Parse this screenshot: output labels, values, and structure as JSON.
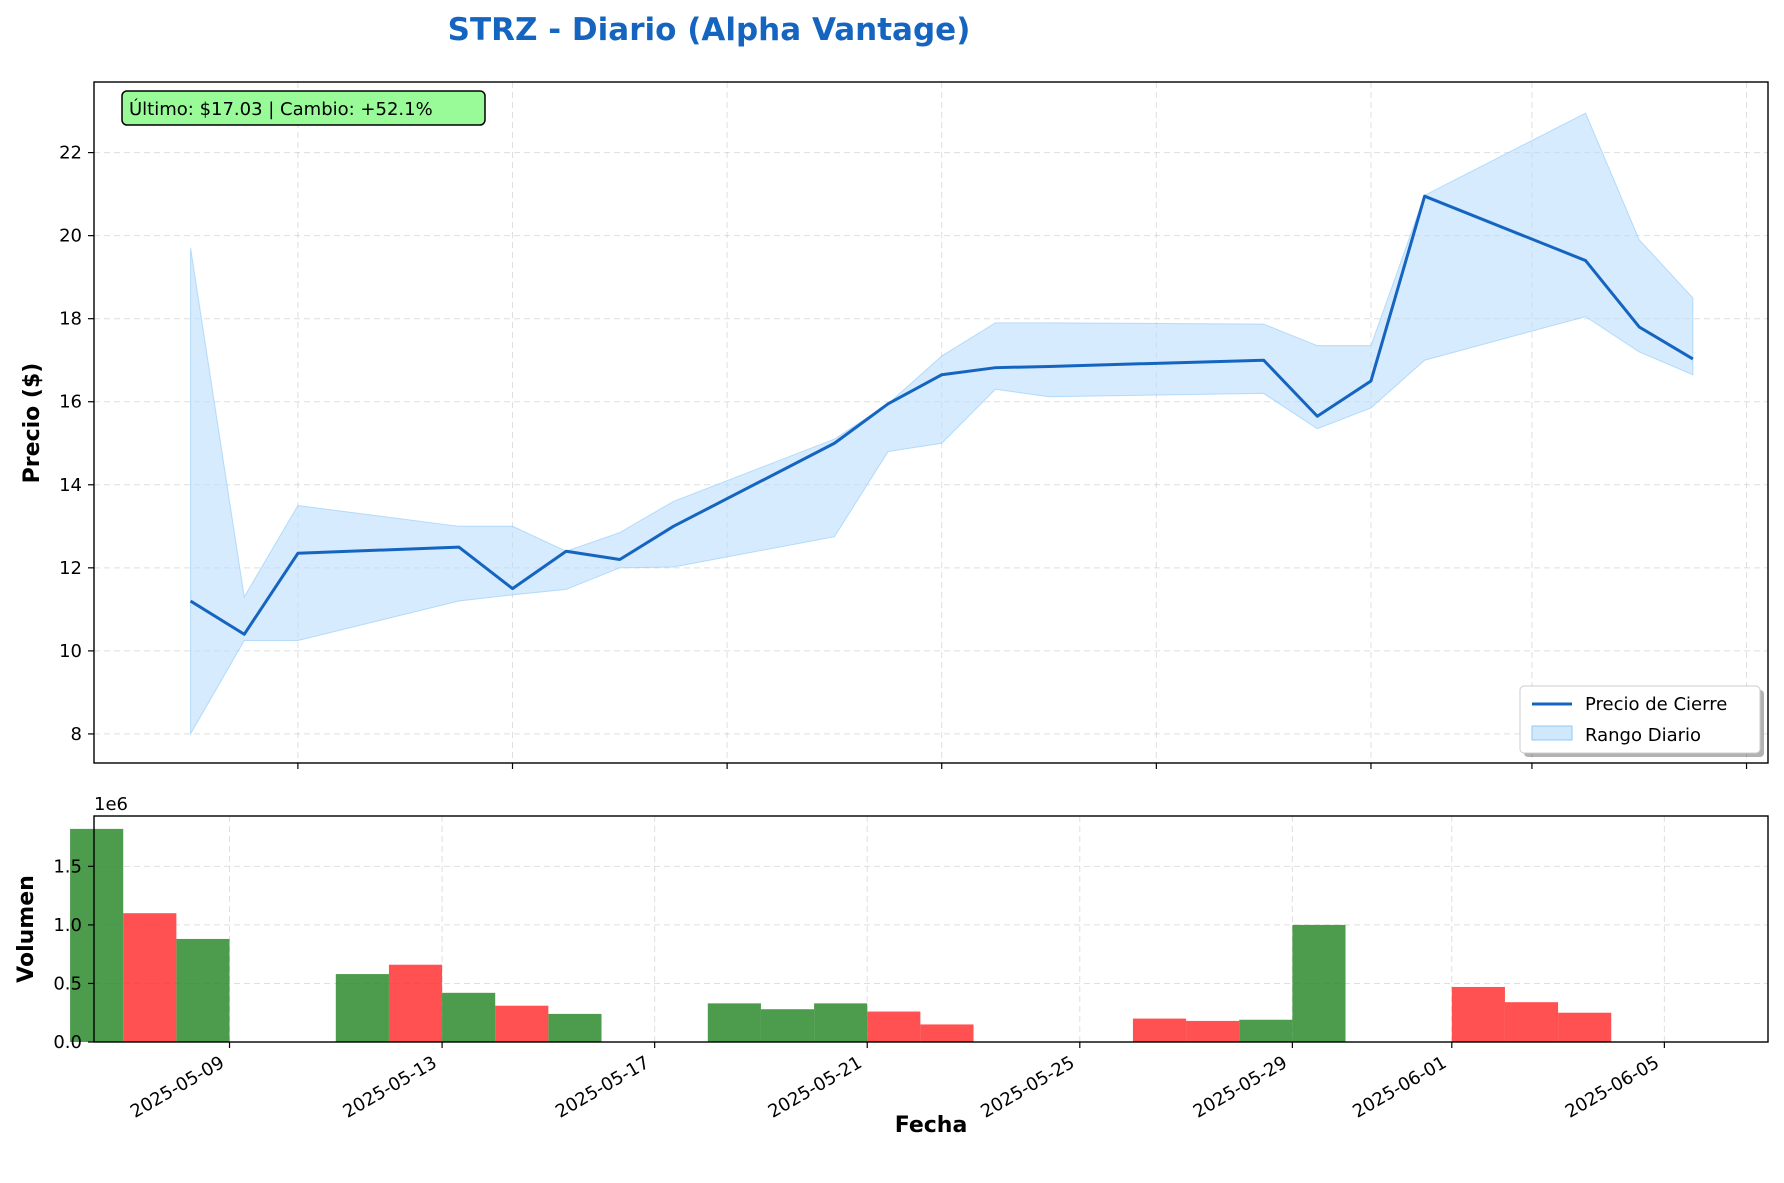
{
  "chart_data": [
    {
      "type": "line",
      "title": "STRZ - Diario (Alpha Vantage)",
      "ylabel": "Precio ($)",
      "ylim": [
        7.3,
        23.7
      ],
      "yticks": [
        8,
        10,
        12,
        14,
        16,
        18,
        20,
        22
      ],
      "grid": true,
      "legend_placement": "lower right",
      "annotation": "Último: $17.03 | Cambio: +52.1%",
      "x": [
        "2025-05-07",
        "2025-05-08",
        "2025-05-09",
        "2025-05-12",
        "2025-05-13",
        "2025-05-14",
        "2025-05-15",
        "2025-05-16",
        "2025-05-19",
        "2025-05-20",
        "2025-05-21",
        "2025-05-22",
        "2025-05-23",
        "2025-05-27",
        "2025-05-28",
        "2025-05-29",
        "2025-05-30",
        "2025-06-02",
        "2025-06-03",
        "2025-06-04"
      ],
      "series": [
        {
          "name": "Precio de Cierre",
          "type": "line",
          "values": [
            11.2,
            10.4,
            12.35,
            12.5,
            11.5,
            12.4,
            12.2,
            13.0,
            15.0,
            15.95,
            16.65,
            16.82,
            16.85,
            17.0,
            15.65,
            16.5,
            20.95,
            19.4,
            17.8,
            17.03
          ]
        },
        {
          "name": "Rango Diario",
          "type": "area",
          "high": [
            19.7,
            11.3,
            13.5,
            13.0,
            13.0,
            12.4,
            12.85,
            13.6,
            15.1,
            15.95,
            17.1,
            17.9,
            17.9,
            17.87,
            17.35,
            17.35,
            20.97,
            22.95,
            19.9,
            18.5
          ],
          "low": [
            8.0,
            10.25,
            10.25,
            11.2,
            11.35,
            11.48,
            12.0,
            12.02,
            12.75,
            14.8,
            15.0,
            16.3,
            16.12,
            16.2,
            15.35,
            15.85,
            17.0,
            18.05,
            17.2,
            16.65
          ]
        }
      ],
      "xaxis": {
        "ticks": [
          "2025-05-09",
          "2025-05-13",
          "2025-05-17",
          "2025-05-21",
          "2025-05-25",
          "2025-05-29",
          "2025-06-01",
          "2025-06-05"
        ]
      },
      "colors": {
        "line": "#1565c0",
        "area": "#bbdefb",
        "annotation_bg": "#98fb98"
      }
    },
    {
      "type": "bar",
      "ylabel": "Volumen",
      "xlabel": "Fecha",
      "y_offset_label": "1e6",
      "ylim": [
        0,
        1.93
      ],
      "yticks": [
        "0.0",
        "0.5",
        "1.0",
        "1.5"
      ],
      "grid": true,
      "x": [
        "2025-05-07",
        "2025-05-08",
        "2025-05-09",
        "2025-05-12",
        "2025-05-13",
        "2025-05-14",
        "2025-05-15",
        "2025-05-16",
        "2025-05-19",
        "2025-05-20",
        "2025-05-21",
        "2025-05-22",
        "2025-05-23",
        "2025-05-27",
        "2025-05-28",
        "2025-05-29",
        "2025-05-30",
        "2025-06-02",
        "2025-06-03",
        "2025-06-04"
      ],
      "values": [
        1.82,
        1.1,
        0.88,
        0.58,
        0.66,
        0.42,
        0.31,
        0.24,
        0.33,
        0.28,
        0.33,
        0.26,
        0.15,
        0.2,
        0.18,
        0.19,
        1.0,
        0.47,
        0.34,
        0.25
      ],
      "bar_colors": [
        "#2e8b2e",
        "#ff3333",
        "#2e8b2e",
        "#2e8b2e",
        "#ff3333",
        "#2e8b2e",
        "#ff3333",
        "#2e8b2e",
        "#2e8b2e",
        "#2e8b2e",
        "#2e8b2e",
        "#ff3333",
        "#ff3333",
        "#ff3333",
        "#ff3333",
        "#2e8b2e",
        "#2e8b2e",
        "#ff3333",
        "#ff3333",
        "#ff3333"
      ],
      "xaxis": {
        "ticks": [
          "2025-05-09",
          "2025-05-13",
          "2025-05-17",
          "2025-05-21",
          "2025-05-25",
          "2025-05-29",
          "2025-06-01",
          "2025-06-05"
        ]
      }
    }
  ]
}
